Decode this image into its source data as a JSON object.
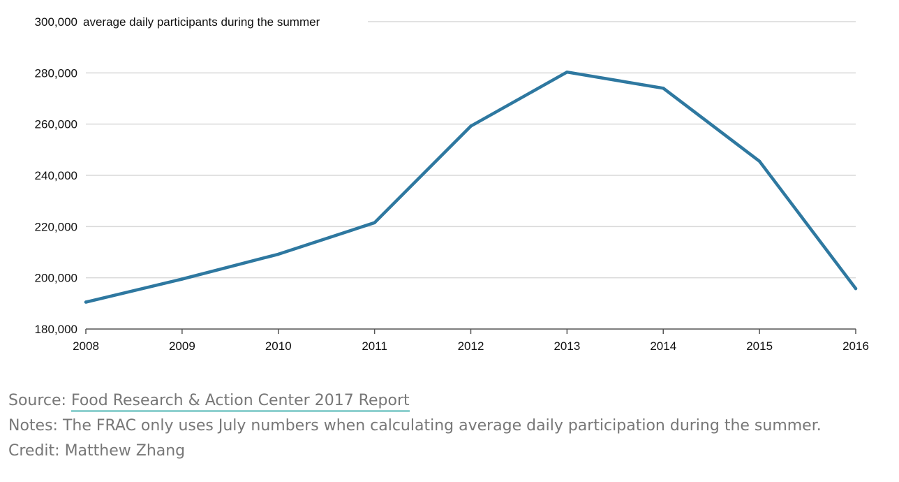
{
  "chart_data": {
    "type": "line",
    "title": "",
    "xlabel": "",
    "ylabel": "average daily participants during the summer",
    "x": [
      2008,
      2009,
      2010,
      2011,
      2012,
      2013,
      2014,
      2015,
      2016
    ],
    "series": [
      {
        "values": [
          190500,
          199500,
          209200,
          221500,
          259200,
          280300,
          274000,
          245500,
          195800
        ],
        "color": "#2e78a0"
      }
    ],
    "ylim": [
      180000,
      300000
    ],
    "yticks": [
      180000,
      200000,
      220000,
      240000,
      260000,
      280000,
      300000
    ],
    "ytick_labels": [
      "180,000",
      "200,000",
      "220,000",
      "240,000",
      "260,000",
      "280,000",
      "300,000"
    ],
    "xtick_labels": [
      "2008",
      "2009",
      "2010",
      "2011",
      "2012",
      "2013",
      "2014",
      "2015",
      "2016"
    ],
    "grid": true,
    "legend": "none"
  },
  "footer": {
    "source_label": "Source: ",
    "source_link": "Food Research & Action Center 2017 Report",
    "notes": "Notes: The FRAC only uses July numbers when calculating average daily participation during the summer.",
    "credit": "Credit: Matthew Zhang"
  },
  "colors": {
    "line": "#2e78a0",
    "grid": "#d9d9d9",
    "axis": "#555555",
    "footer_text": "#777777",
    "link_underline": "#8fd0cf"
  }
}
